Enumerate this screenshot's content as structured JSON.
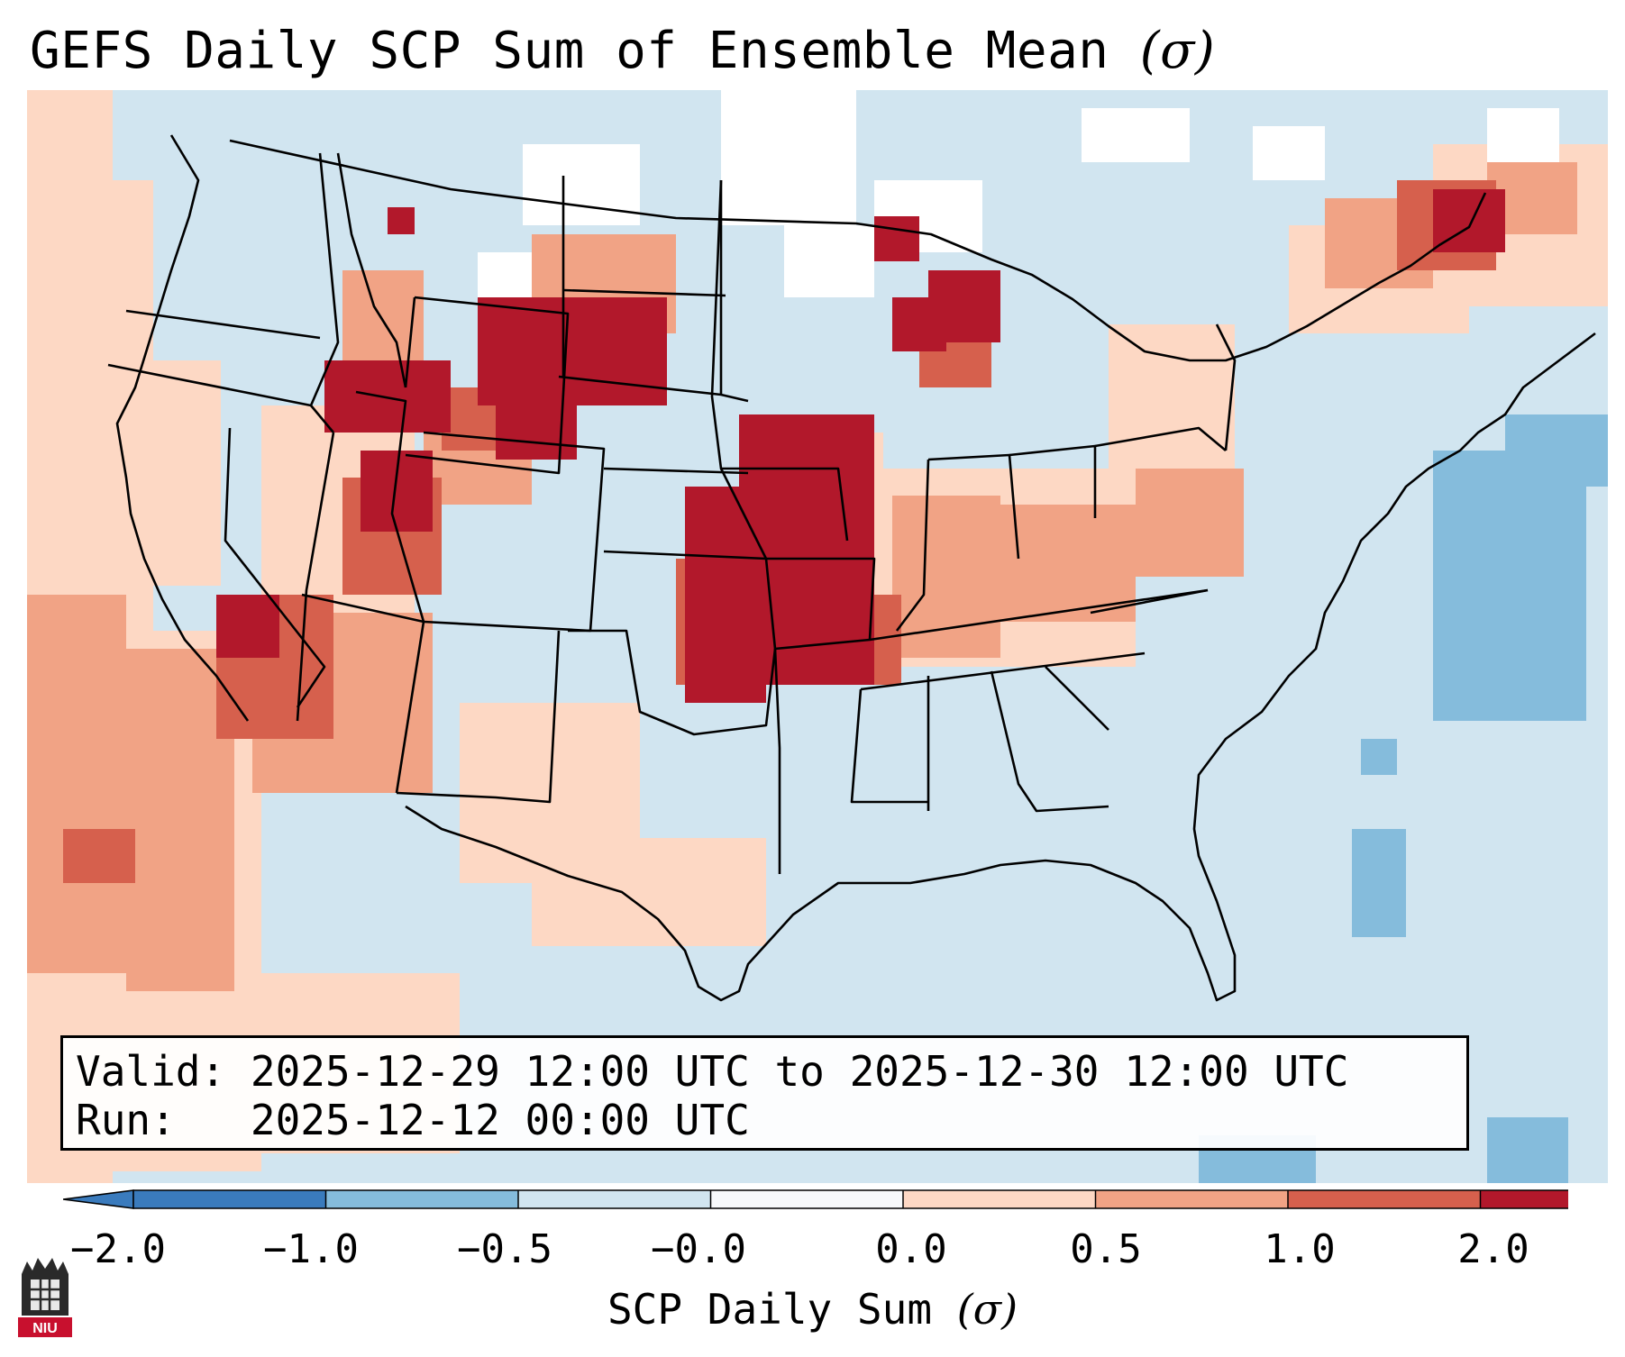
{
  "title": {
    "text": "GEFS Daily SCP Sum of Ensemble Mean",
    "unit": "(σ)"
  },
  "info": {
    "valid_label": "Valid:",
    "valid_start": "2025-12-29 12:00 UTC",
    "valid_sep": "to",
    "valid_end": "2025-12-30 12:00 UTC",
    "run_label": "Run:",
    "run_time": "2025-12-12 00:00 UTC"
  },
  "colorbar": {
    "label": "SCP Daily Sum",
    "unit": "(σ)",
    "ticks": [
      "−2.0",
      "−1.0",
      "−0.5",
      "−0.0",
      "0.0",
      "0.5",
      "1.0",
      "2.0"
    ],
    "colors": [
      "#3a7bbd",
      "#85bcdc",
      "#d1e5f0",
      "#f7f9fb",
      "#fdd8c4",
      "#f1a385",
      "#d6604d",
      "#b2182b"
    ]
  },
  "map_palette": {
    "background": "#d1e5f0",
    "none": "#ffffff",
    "slight": "#fdd8c4",
    "moderate": "#f1a385",
    "high": "#d6604d",
    "extreme": "#b2182b",
    "negative": "#85bcdc"
  },
  "logo": {
    "text": "NIU"
  }
}
